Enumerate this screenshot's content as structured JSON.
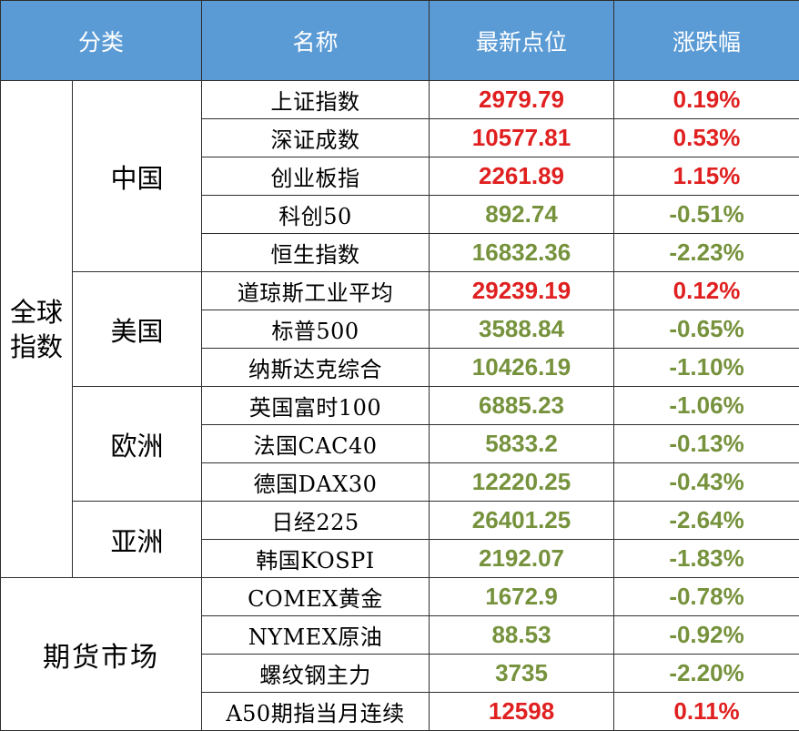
{
  "headers": {
    "category": "分类",
    "name": "名称",
    "latest": "最新点位",
    "change": "涨跌幅"
  },
  "groups": {
    "global": "全球指数",
    "futures": "期货市场"
  },
  "regions": {
    "china": "中国",
    "us": "美国",
    "europe": "欧洲",
    "asia": "亚洲"
  },
  "rows": [
    {
      "name": "上证指数",
      "value": "2979.79",
      "change": "0.19%",
      "direction": "up"
    },
    {
      "name": "深证成数",
      "value": "10577.81",
      "change": "0.53%",
      "direction": "up"
    },
    {
      "name": "创业板指",
      "value": "2261.89",
      "change": "1.15%",
      "direction": "up"
    },
    {
      "name": "科创50",
      "value": "892.74",
      "change": "-0.51%",
      "direction": "down"
    },
    {
      "name": "恒生指数",
      "value": "16832.36",
      "change": "-2.23%",
      "direction": "down"
    },
    {
      "name": "道琼斯工业平均",
      "value": "29239.19",
      "change": "0.12%",
      "direction": "up"
    },
    {
      "name": "标普500",
      "value": "3588.84",
      "change": "-0.65%",
      "direction": "down"
    },
    {
      "name": "纳斯达克综合",
      "value": "10426.19",
      "change": "-1.10%",
      "direction": "down"
    },
    {
      "name": "英国富时100",
      "value": "6885.23",
      "change": "-1.06%",
      "direction": "down"
    },
    {
      "name": "法国CAC40",
      "value": "5833.2",
      "change": "-0.13%",
      "direction": "down"
    },
    {
      "name": "德国DAX30",
      "value": "12220.25",
      "change": "-0.43%",
      "direction": "down"
    },
    {
      "name": "日经225",
      "value": "26401.25",
      "change": "-2.64%",
      "direction": "down"
    },
    {
      "name": "韩国KOSPI",
      "value": "2192.07",
      "change": "-1.83%",
      "direction": "down"
    },
    {
      "name": "COMEX黄金",
      "value": "1672.9",
      "change": "-0.78%",
      "direction": "down"
    },
    {
      "name": "NYMEX原油",
      "value": "88.53",
      "change": "-0.92%",
      "direction": "down"
    },
    {
      "name": "螺纹钢主力",
      "value": "3735",
      "change": "-2.20%",
      "direction": "down"
    },
    {
      "name": "A50期指当月连续",
      "value": "12598",
      "change": "0.11%",
      "direction": "up"
    }
  ],
  "colors": {
    "header_bg": "#5b9bd5",
    "up": "#e02020",
    "down": "#76923c"
  }
}
